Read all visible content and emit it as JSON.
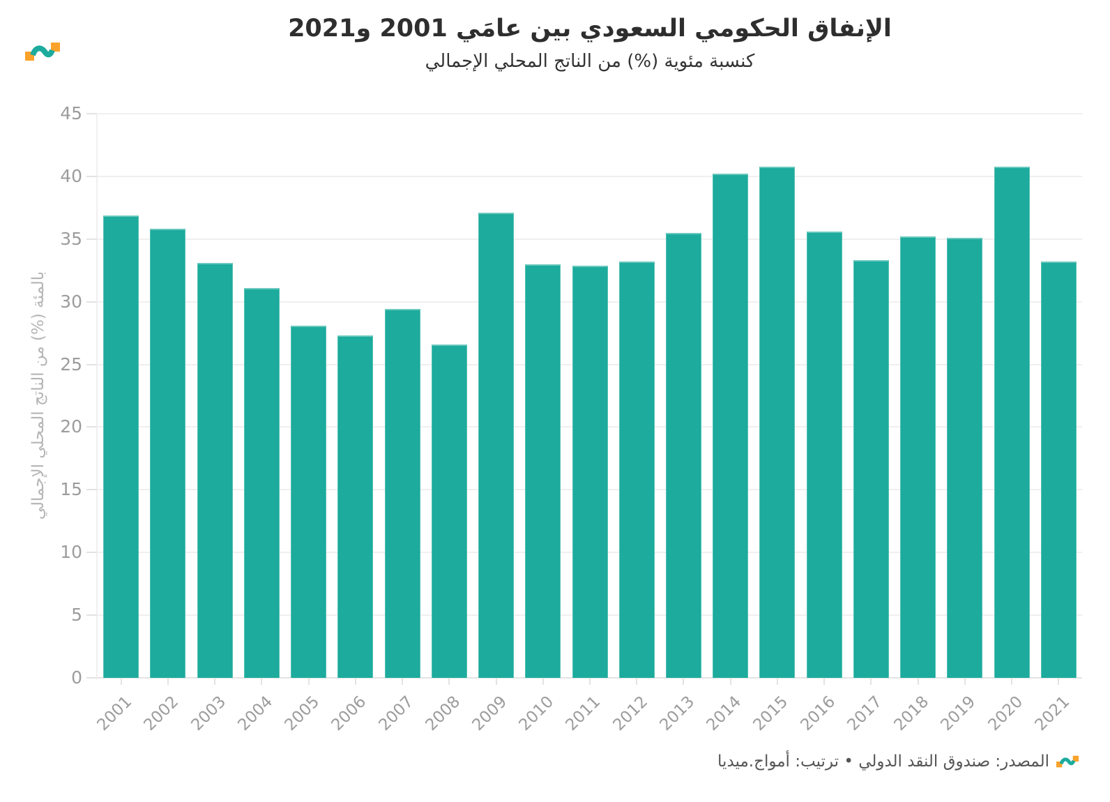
{
  "header": {
    "title": "الإنفاق الحكومي السعودي بين عامَي 2001 و2021",
    "subtitle": "كنسبة مئوية (%) من الناتج المحلي الإجمالي"
  },
  "logo": {
    "teal": "#1CAB9C",
    "orange": "#FAA22B"
  },
  "chart_data": {
    "type": "bar",
    "title": "الإنفاق الحكومي السعودي بين عامَي 2001 و2021",
    "subtitle": "كنسبة مئوية (%) من الناتج المحلي الإجمالي",
    "categories": [
      "2001",
      "2002",
      "2003",
      "2004",
      "2005",
      "2006",
      "2007",
      "2008",
      "2009",
      "2010",
      "2011",
      "2012",
      "2013",
      "2014",
      "2015",
      "2016",
      "2017",
      "2018",
      "2019",
      "2020",
      "2021"
    ],
    "values": [
      36.9,
      35.8,
      33.1,
      31.1,
      28.1,
      27.3,
      29.4,
      26.6,
      37.1,
      33.0,
      32.9,
      33.2,
      35.5,
      40.2,
      40.8,
      35.6,
      33.3,
      35.2,
      35.1,
      40.8,
      33.2
    ],
    "xlabel": "",
    "ylabel": "بالمئة (%) من الناتج المحلي الإجمالي",
    "ylim": [
      0,
      45
    ],
    "ytick_step": 5,
    "bar_color": "#1CAB9C",
    "grid": true,
    "gridline_color": "#efefef",
    "baseline_color": "#e4e4e4",
    "tick_label_color": "#9c9c9c",
    "legend": "none"
  },
  "footer": {
    "text": "المصدر: صندوق النقد الدولي • ترتيب: أمواج.ميديا"
  }
}
